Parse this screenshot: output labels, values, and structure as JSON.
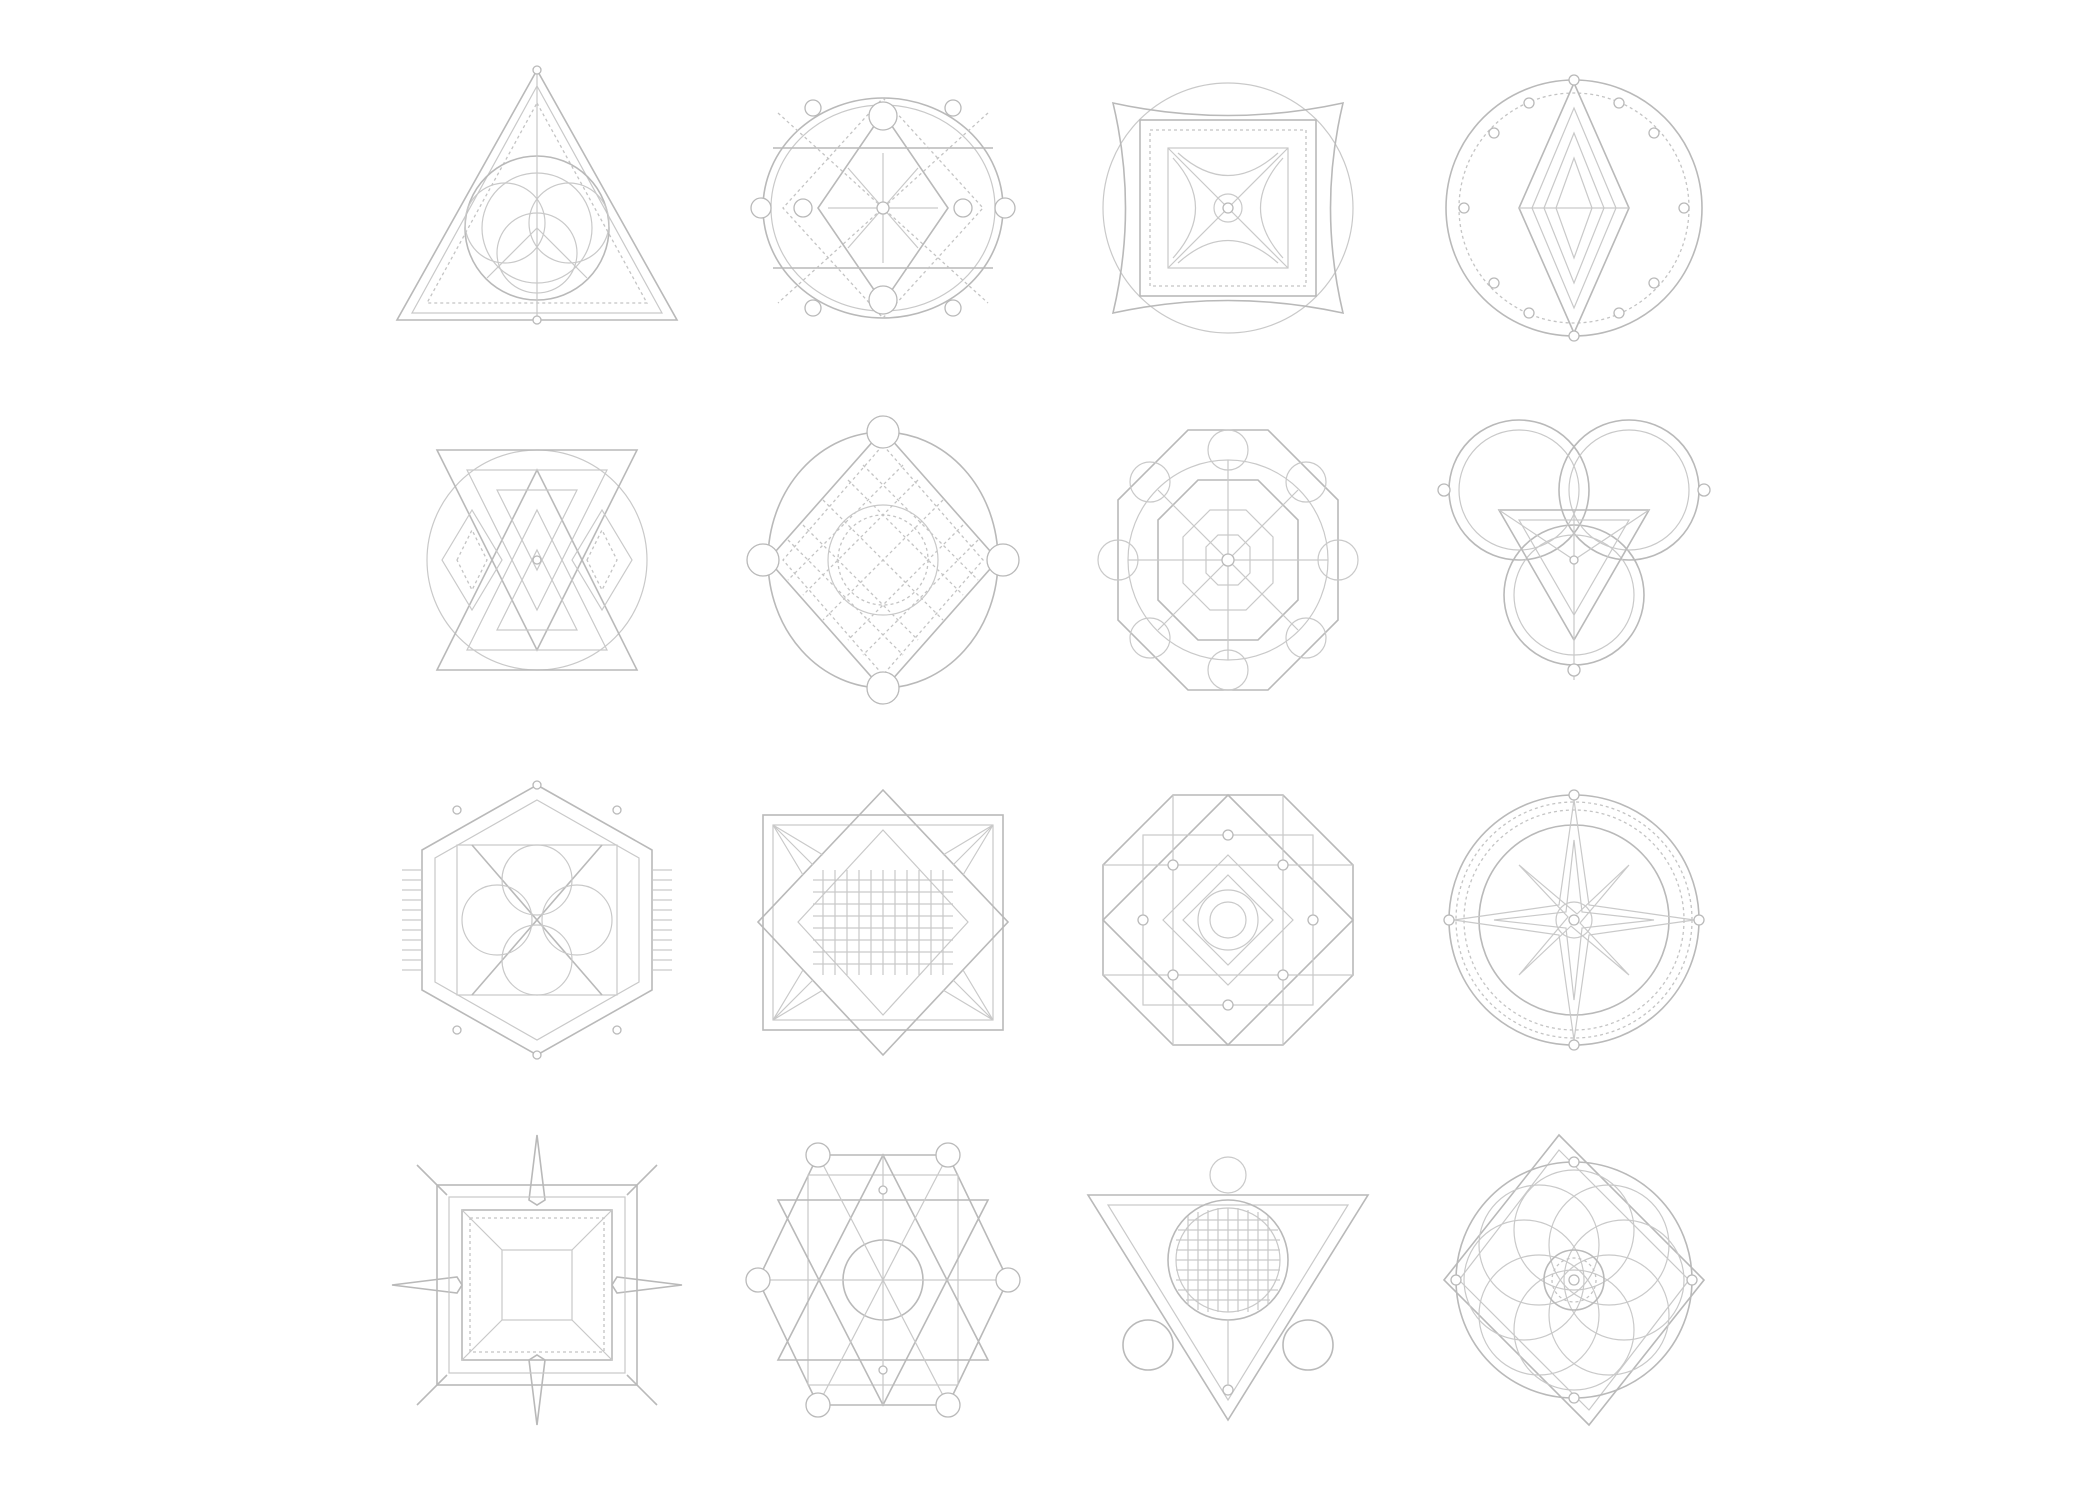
{
  "colors": {
    "background": "#ffffff",
    "line": "#b9b9b9",
    "line_light": "#c9c9c9"
  },
  "emblems": [
    {
      "icon": "triangle-seal-icon"
    },
    {
      "icon": "circle-diamond-seal-icon"
    },
    {
      "icon": "square-star-seal-icon"
    },
    {
      "icon": "circle-nested-diamond-seal-icon"
    },
    {
      "icon": "hourglass-triangles-seal-icon"
    },
    {
      "icon": "grid-diamond-seal-icon"
    },
    {
      "icon": "octagon-flower-seal-icon"
    },
    {
      "icon": "trefoil-triangle-seal-icon"
    },
    {
      "icon": "hexagon-circles-seal-icon"
    },
    {
      "icon": "square-grid-diamond-seal-icon"
    },
    {
      "icon": "octagon-star-seal-icon"
    },
    {
      "icon": "circle-grid-star-seal-icon"
    },
    {
      "icon": "compass-square-seal-icon"
    },
    {
      "icon": "hexagram-circle-seal-icon"
    },
    {
      "icon": "inverted-triangle-grid-seal-icon"
    },
    {
      "icon": "rosette-diamond-seal-icon"
    }
  ]
}
